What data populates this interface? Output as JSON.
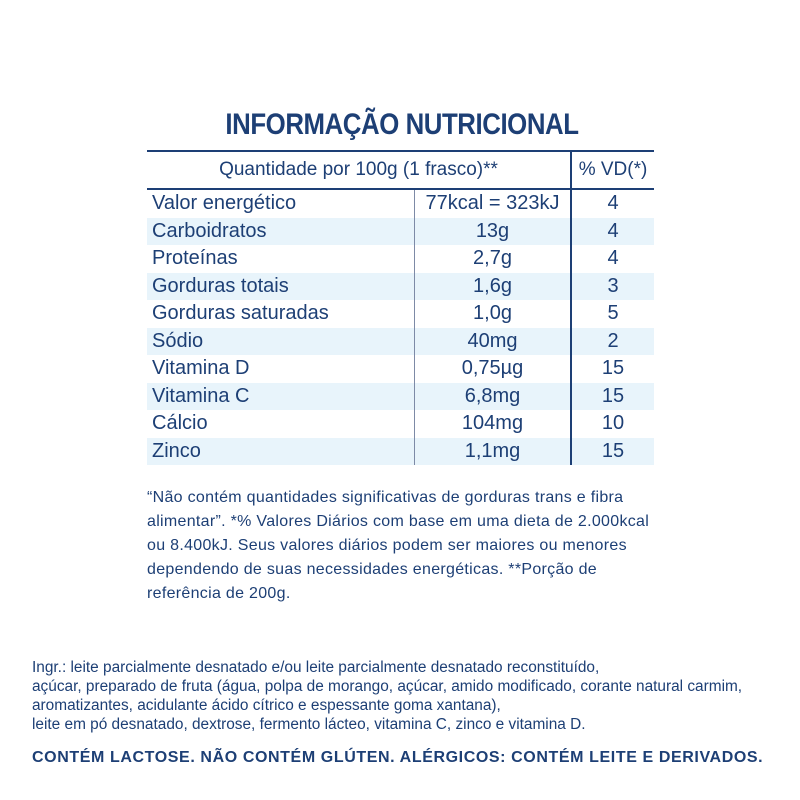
{
  "title": "INFORMAÇÃO NUTRICIONAL",
  "table": {
    "header_quantity": "Quantidade por 100g (1 frasco)**",
    "header_vd": "% VD(*)",
    "rows": [
      {
        "name": "Valor energético",
        "amount": "77kcal = 323kJ",
        "vd": "4"
      },
      {
        "name": "Carboidratos",
        "amount": "13g",
        "vd": "4"
      },
      {
        "name": "Proteínas",
        "amount": "2,7g",
        "vd": "4"
      },
      {
        "name": "Gorduras totais",
        "amount": "1,6g",
        "vd": "3"
      },
      {
        "name": "Gorduras saturadas",
        "amount": "1,0g",
        "vd": "5"
      },
      {
        "name": "Sódio",
        "amount": "40mg",
        "vd": "2"
      },
      {
        "name": "Vitamina D",
        "amount": "0,75µg",
        "vd": "15"
      },
      {
        "name": "Vitamina C",
        "amount": "6,8mg",
        "vd": "15"
      },
      {
        "name": "Cálcio",
        "amount": "104mg",
        "vd": "10"
      },
      {
        "name": "Zinco",
        "amount": "1,1mg",
        "vd": "15"
      }
    ]
  },
  "footnote": "“Não contém quantidades significativas de gorduras trans e fibra alimentar”. *% Valores Diários com base em uma dieta de 2.000kcal ou 8.400kJ. Seus valores diários podem ser maiores ou menores dependendo de suas necessidades energéticas. **Porção de referência de 200g.",
  "ingredients": "Ingr.: leite parcialmente desnatado e/ou leite parcialmente desnatado reconstituído,\naçúcar, preparado de fruta (água, polpa de morango, açúcar, amido modificado, corante natural carmim, aromatizantes, acidulante ácido cítrico e espessante goma xantana),\nleite em pó desnatado, dextrose, fermento lácteo, vitamina C, zinco e vitamina D.",
  "warning": "CONTÉM LACTOSE. NÃO CONTÉM GLÚTEN. ALÉRGICOS: CONTÉM LEITE E DERIVADOS.",
  "colors": {
    "text": "#1d3f75",
    "row_shade": "#e8f4fb",
    "background": "#ffffff"
  }
}
